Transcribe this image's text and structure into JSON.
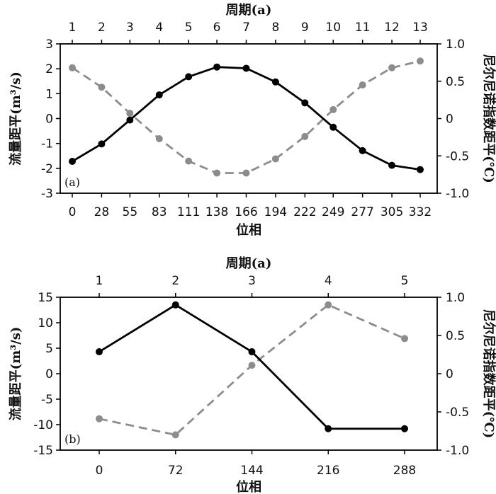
{
  "chart_data": [
    {
      "type": "line",
      "panel_label": "(a)",
      "xlabel": "位相",
      "x2label": "周期(a)",
      "ylabel": "流量距平(m³/s)",
      "y2label": "尼尔尼诺指数距平(℃)",
      "x": [
        0,
        28,
        55,
        83,
        111,
        138,
        166,
        194,
        222,
        249,
        277,
        305,
        332
      ],
      "x_top": [
        "1",
        "2",
        "3",
        "4",
        "5",
        "6",
        "7",
        "8",
        "9",
        "10",
        "11",
        "12",
        "13"
      ],
      "ylim": [
        -3,
        3
      ],
      "yticks": [
        "3",
        "2",
        "1",
        "0",
        "-1",
        "-2",
        "-3"
      ],
      "y2lim": [
        -1.0,
        1.0
      ],
      "y2ticks": [
        "1.0",
        "0.5",
        "0",
        "-0.5",
        "-1.0"
      ],
      "grid": false,
      "series": [
        {
          "axis": "left",
          "style": "solid",
          "color": "#000000",
          "values": [
            -1.72,
            -1.02,
            -0.06,
            0.95,
            1.68,
            2.07,
            2.02,
            1.47,
            0.63,
            -0.35,
            -1.29,
            -1.88,
            -2.05
          ]
        },
        {
          "axis": "right",
          "style": "dashed",
          "color": "#8c8c8c",
          "values": [
            0.68,
            0.42,
            0.07,
            -0.27,
            -0.57,
            -0.73,
            -0.73,
            -0.54,
            -0.24,
            0.12,
            0.45,
            0.68,
            0.77
          ]
        }
      ]
    },
    {
      "type": "line",
      "panel_label": "(b)",
      "xlabel": "位相",
      "x2label": "周期(a)",
      "ylabel": "流量距平(m³/s)",
      "y2label": "尼尔尼诺指数距平(℃)",
      "x": [
        0,
        72,
        144,
        216,
        288
      ],
      "x_top": [
        "1",
        "2",
        "3",
        "4",
        "5"
      ],
      "ylim": [
        -15,
        15
      ],
      "yticks": [
        "15",
        "10",
        "5",
        "0",
        "-5",
        "-10",
        "-15"
      ],
      "y2lim": [
        -1.0,
        1.0
      ],
      "y2ticks": [
        "1.0",
        "0.5",
        "0",
        "-0.5",
        "-1.0"
      ],
      "grid": false,
      "series": [
        {
          "axis": "left",
          "style": "solid",
          "color": "#000000",
          "values": [
            4.3,
            13.5,
            4.3,
            -10.8,
            -10.8
          ]
        },
        {
          "axis": "right",
          "style": "dashed",
          "color": "#8c8c8c",
          "values": [
            -0.59,
            -0.8,
            0.11,
            0.9,
            0.46
          ]
        }
      ]
    }
  ]
}
